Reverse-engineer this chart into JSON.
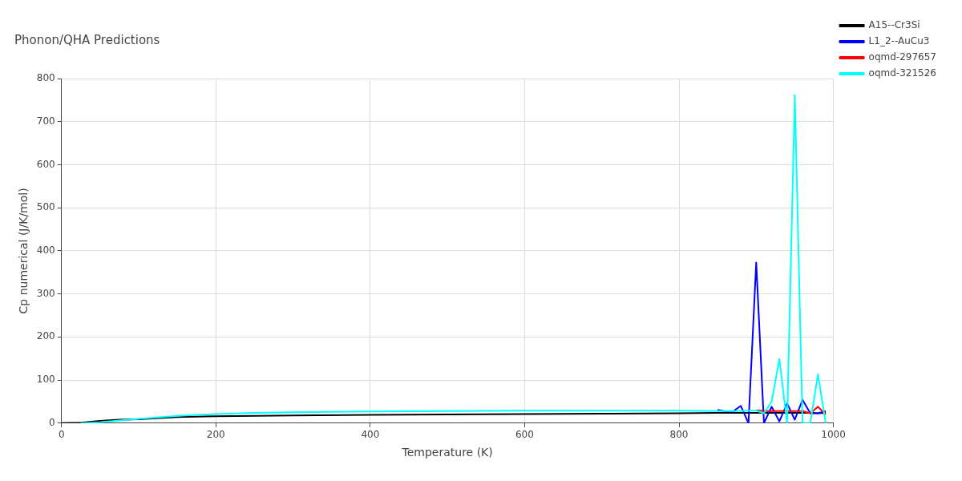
{
  "chart_data": {
    "type": "line",
    "title": "Phonon/QHA Predictions",
    "xlabel": "Temperature (K)",
    "ylabel": "Cp numerical (J/K/mol)",
    "x": [
      0,
      25,
      50,
      75,
      100,
      150,
      200,
      250,
      300,
      400,
      500,
      600,
      700,
      800,
      850,
      860,
      870,
      880,
      890,
      900,
      910,
      920,
      930,
      940,
      950,
      960,
      970,
      980,
      990
    ],
    "series": [
      {
        "name": "A15--Cr3Si",
        "color": "#000000",
        "values": [
          0,
          1,
          5,
          8,
          9,
          14,
          16,
          17,
          18,
          19,
          20,
          21,
          22,
          23,
          24,
          24,
          24,
          24,
          24,
          24,
          24,
          24,
          24,
          24,
          24,
          24,
          24,
          23,
          24
        ]
      },
      {
        "name": "L1_2--AuCu3",
        "color": "#0000ff",
        "values": [
          null,
          null,
          null,
          null,
          null,
          null,
          null,
          null,
          null,
          null,
          null,
          null,
          null,
          null,
          31,
          27,
          27,
          40,
          0,
          373,
          0,
          38,
          4,
          46,
          8,
          54,
          23,
          23,
          28
        ]
      },
      {
        "name": "oqmd-297657",
        "color": "#ff0000",
        "values": [
          null,
          null,
          null,
          null,
          null,
          null,
          null,
          null,
          null,
          null,
          null,
          null,
          null,
          null,
          null,
          null,
          null,
          null,
          null,
          30,
          28,
          28,
          28,
          28,
          28,
          28,
          23,
          38,
          20
        ]
      },
      {
        "name": "oqmd-321526",
        "color": "#00ffff",
        "values": [
          null,
          0,
          2,
          6,
          10,
          17,
          21,
          24,
          25,
          27,
          28,
          29,
          29,
          29,
          28,
          28,
          28,
          28,
          29,
          29,
          23,
          50,
          149,
          0,
          762,
          0,
          0,
          113,
          0
        ]
      }
    ],
    "xlim": [
      0,
      1000
    ],
    "xticks": [
      0,
      200,
      400,
      600,
      800,
      1000
    ],
    "ylim": [
      0,
      800
    ],
    "yticks": [
      0,
      100,
      200,
      300,
      400,
      500,
      600,
      700,
      800
    ],
    "grid": true,
    "legend": "top right",
    "marker": "none",
    "line_style": "solid"
  }
}
